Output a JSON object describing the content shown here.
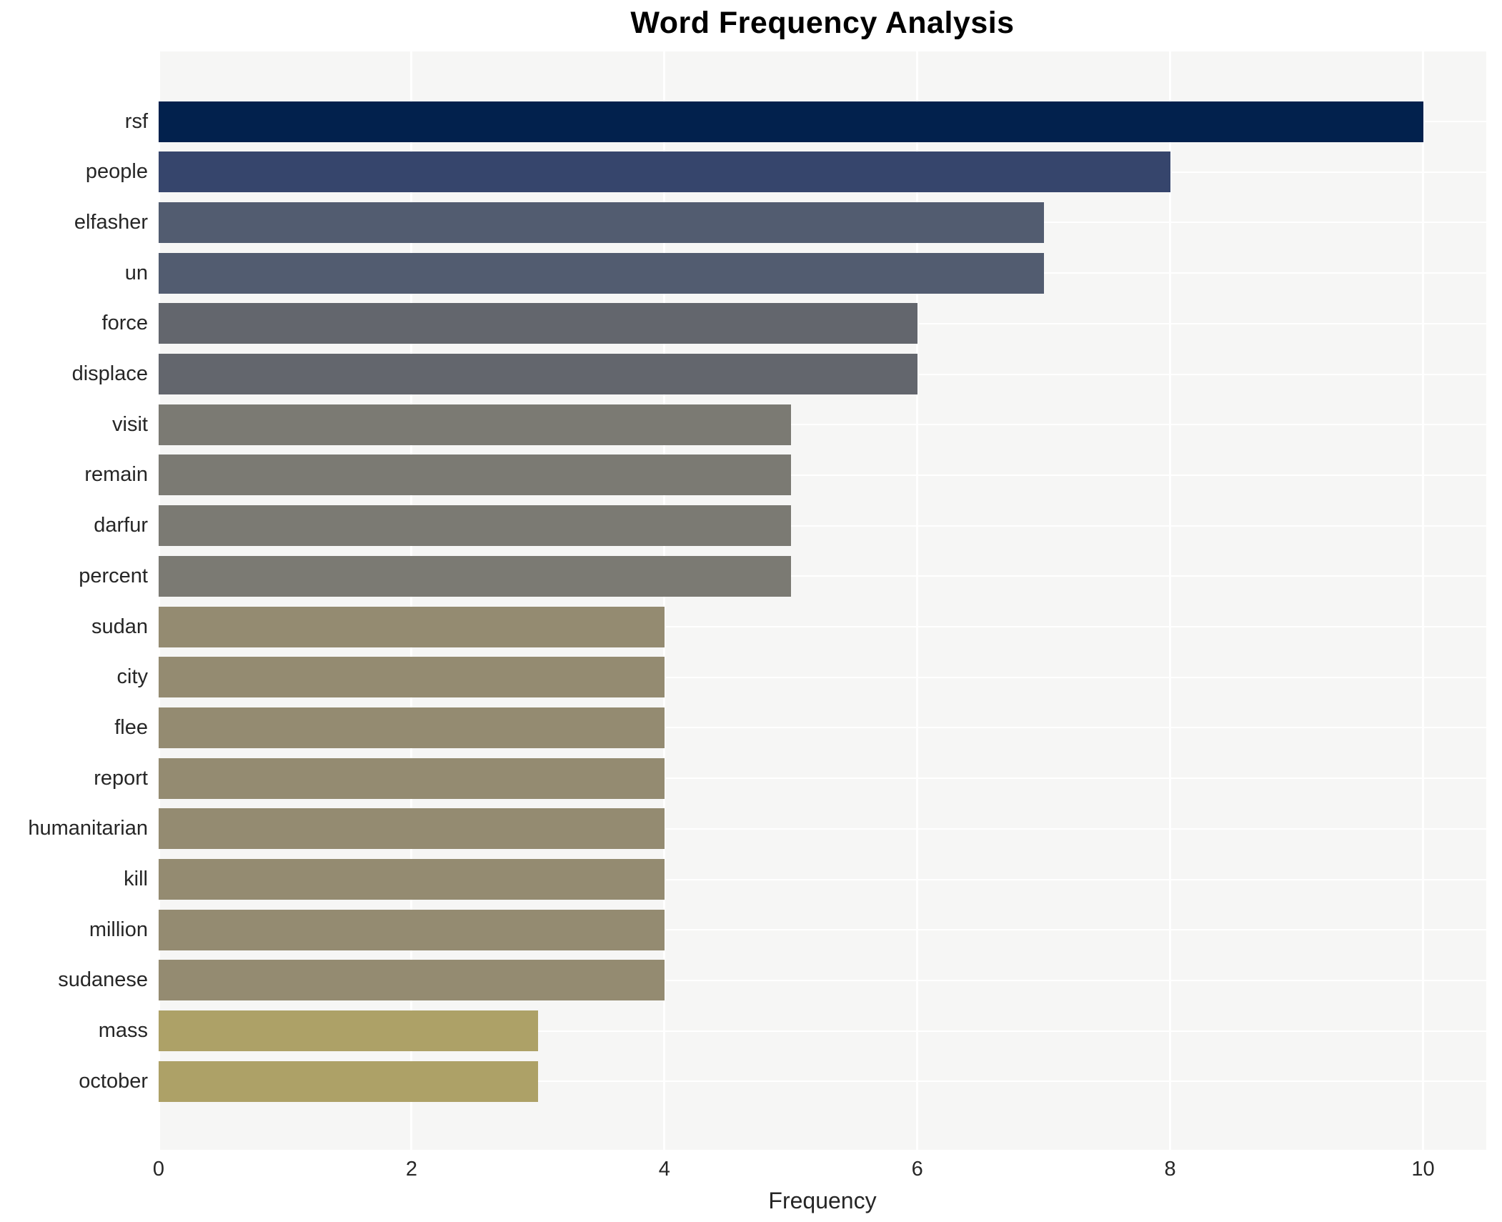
{
  "chart_data": {
    "type": "bar",
    "orientation": "horizontal",
    "title": "Word Frequency Analysis",
    "xlabel": "Frequency",
    "ylabel": "",
    "xlim": [
      0,
      10.5
    ],
    "xticks": [
      0,
      2,
      4,
      6,
      8,
      10
    ],
    "grid": true,
    "legend": "none",
    "plot_background": "#f6f6f5",
    "gridline_color": "#ffffff",
    "categories": [
      "rsf",
      "people",
      "elfasher",
      "un",
      "force",
      "displace",
      "visit",
      "remain",
      "darfur",
      "percent",
      "sudan",
      "city",
      "flee",
      "report",
      "humanitarian",
      "kill",
      "million",
      "sudanese",
      "mass",
      "october"
    ],
    "values": [
      10,
      8,
      7,
      7,
      6,
      6,
      5,
      5,
      5,
      5,
      4,
      4,
      4,
      4,
      4,
      4,
      4,
      4,
      3,
      3
    ],
    "bar_colors": [
      "#02214d",
      "#36456c",
      "#525c70",
      "#525c70",
      "#63666d",
      "#63666d",
      "#7b7a73",
      "#7b7a73",
      "#7b7a73",
      "#7b7a73",
      "#948b71",
      "#948b71",
      "#948b71",
      "#948b71",
      "#948b71",
      "#948b71",
      "#948b71",
      "#948b71",
      "#ada167",
      "#ada167"
    ]
  }
}
